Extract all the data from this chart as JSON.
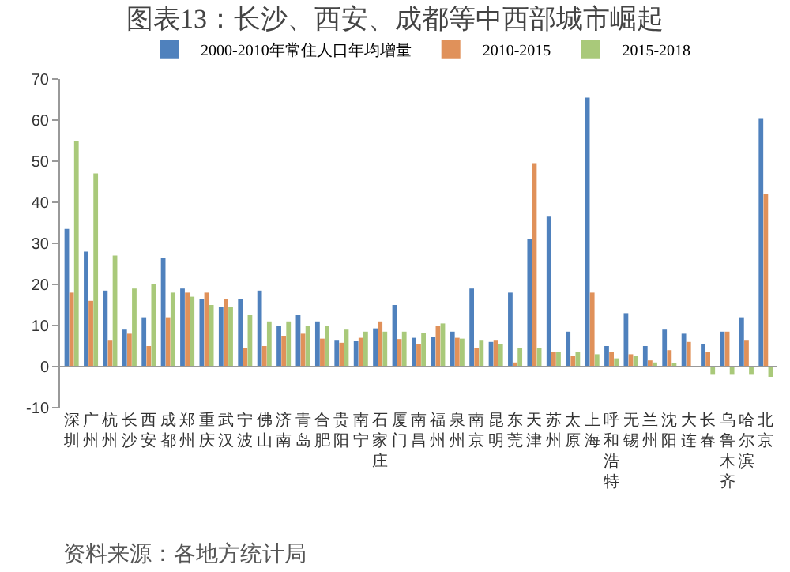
{
  "chart_data": {
    "type": "bar",
    "title": "图表13：长沙、西安、成都等中西部城市崛起",
    "categories": [
      "深圳",
      "广州",
      "杭州",
      "长沙",
      "西安",
      "成都",
      "郑州",
      "重庆",
      "武汉",
      "宁波",
      "佛山",
      "济南",
      "青岛",
      "合肥",
      "贵阳",
      "南宁",
      "石家庄",
      "厦门",
      "南昌",
      "福州",
      "泉州",
      "南京",
      "昆明",
      "东莞",
      "天津",
      "苏州",
      "太原",
      "上海",
      "呼和浩特",
      "无锡",
      "兰州",
      "沈阳",
      "大连",
      "长春",
      "乌鲁木齐",
      "哈尔滨",
      "北京"
    ],
    "series": [
      {
        "name": "2000-2010年常住人口年均增量",
        "color": "#4f81bd",
        "values": [
          33.5,
          28,
          18.5,
          9,
          12,
          26.5,
          19,
          16.5,
          14.5,
          16.5,
          18.5,
          10,
          12.5,
          11,
          6.5,
          6.3,
          9.3,
          15,
          7,
          7.2,
          8.5,
          19,
          6,
          18,
          31,
          36.5,
          8.5,
          65.5,
          5,
          13,
          5,
          9,
          8,
          5.5,
          8.5,
          12,
          60.5
        ]
      },
      {
        "name": "2010-2015",
        "color": "#e0915a",
        "values": [
          18,
          16,
          6.5,
          8,
          5,
          12,
          18,
          18,
          16.5,
          4.5,
          5,
          7.5,
          8,
          6.8,
          5.8,
          7,
          11,
          6.7,
          5.5,
          10,
          7,
          4.5,
          6.5,
          1,
          49.5,
          3.5,
          2.5,
          18,
          3.5,
          3,
          1.5,
          4,
          6,
          3.5,
          8.5,
          6.5,
          42
        ]
      },
      {
        "name": "2015-2018",
        "color": "#a9c97a",
        "values": [
          55,
          47,
          27,
          19,
          20,
          18,
          17,
          15,
          14.5,
          12.5,
          11,
          11,
          10,
          10,
          9,
          8.5,
          8.5,
          8.5,
          8.2,
          10.5,
          6.8,
          6.5,
          5.5,
          4.5,
          4.5,
          3.5,
          3.5,
          3,
          2,
          2.5,
          1,
          0.5,
          0,
          -2,
          -2,
          -2,
          -2.5
        ]
      }
    ],
    "ylim": [
      -10,
      70
    ],
    "yticks": [
      -10,
      0,
      10,
      20,
      30,
      40,
      50,
      60,
      70
    ],
    "legend": "top",
    "annotations": [
      "资料来源：各地方统计局"
    ]
  }
}
